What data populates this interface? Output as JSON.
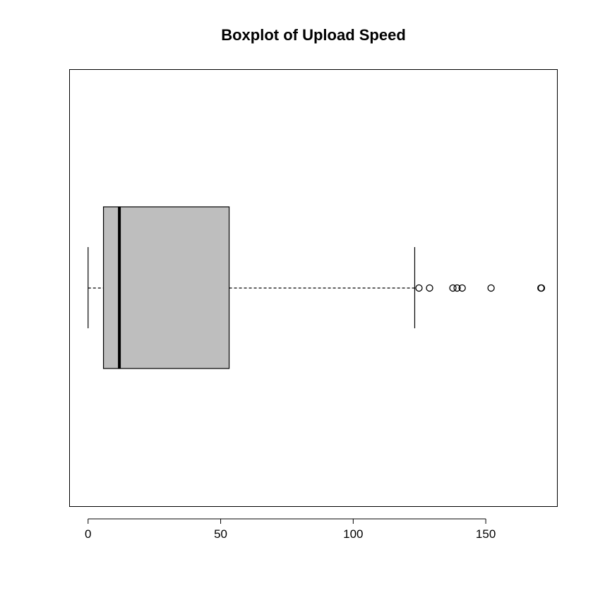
{
  "chart_data": {
    "type": "boxplot",
    "orientation": "horizontal",
    "title": "Boxplot of Upload Speed",
    "xlabel": "",
    "ylabel": "",
    "xlim": [
      -7,
      177
    ],
    "ticks": [
      0,
      50,
      100,
      150
    ],
    "tick_labels": [
      "0",
      "50",
      "100",
      "150"
    ],
    "grid": false,
    "box": {
      "whisker_low": 0,
      "q1": 5.8,
      "median": 11.8,
      "q3": 53.2,
      "whisker_high": 123.2
    },
    "outliers": [
      124.8,
      128.8,
      137.6,
      139.2,
      141.1,
      152.0,
      170.8,
      171.0
    ],
    "colors": {
      "box_fill": "#bebebe",
      "stroke": "#000000",
      "background": "#ffffff"
    }
  }
}
